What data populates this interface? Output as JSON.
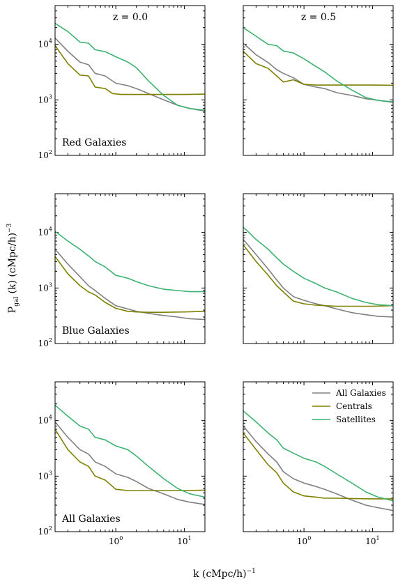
{
  "xlabel_main": "k (cMpc/h)",
  "xlabel_sup": "−1",
  "ylabel_main": "P",
  "ylabel_sub": "gal",
  "ylabel_rest": " (k) (cMpc/h)",
  "ylabel_sup": "−3",
  "x_tick_labels": [
    {
      "base": "10",
      "exp": "0",
      "value": 1
    },
    {
      "base": "10",
      "exp": "1",
      "value": 10
    }
  ],
  "y_tick_labels": [
    {
      "base": "10",
      "exp": "2",
      "value": 100
    },
    {
      "base": "10",
      "exp": "3",
      "value": 1000
    },
    {
      "base": "10",
      "exp": "4",
      "value": 10000
    }
  ],
  "colors": {
    "All Galaxies": "#808080",
    "Centrals": "#808000",
    "Satellites": "#3cb371"
  },
  "legend": [
    {
      "name": "All Galaxies",
      "color": "#808080"
    },
    {
      "name": "Centrals",
      "color": "#808000"
    },
    {
      "name": "Satellites",
      "color": "#3cb371"
    }
  ],
  "legend_placement": "top-right of bottom-right panel",
  "chart_data": [
    {
      "type": "line",
      "row": 0,
      "col": 0,
      "title": "z = 0.0",
      "label": "Red Galaxies",
      "xscale": "log",
      "yscale": "log",
      "xlim": [
        0.13,
        20
      ],
      "ylim": [
        100,
        50000
      ],
      "series": [
        {
          "name": "All Galaxies",
          "x": [
            0.13,
            0.2,
            0.3,
            0.4,
            0.5,
            0.7,
            1,
            1.5,
            2,
            3,
            5,
            8,
            12,
            20
          ],
          "y": [
            13000,
            7500,
            4800,
            4300,
            3000,
            2700,
            2000,
            1800,
            1600,
            1300,
            1000,
            800,
            700,
            630
          ]
        },
        {
          "name": "Centrals",
          "x": [
            0.13,
            0.2,
            0.3,
            0.4,
            0.5,
            0.7,
            0.9,
            1.2,
            2,
            3,
            5,
            10,
            20
          ],
          "y": [
            9500,
            4500,
            2800,
            2700,
            1700,
            1600,
            1300,
            1250,
            1250,
            1250,
            1250,
            1250,
            1270
          ]
        },
        {
          "name": "Satellites",
          "x": [
            0.13,
            0.2,
            0.3,
            0.4,
            0.5,
            0.7,
            1,
            1.5,
            2,
            3,
            5,
            8,
            12,
            20
          ],
          "y": [
            24000,
            17000,
            11000,
            10500,
            8000,
            7400,
            6000,
            4800,
            3800,
            2200,
            1200,
            800,
            700,
            650
          ]
        }
      ]
    },
    {
      "type": "line",
      "row": 0,
      "col": 1,
      "title": "z = 0.5",
      "label": "",
      "xscale": "log",
      "yscale": "log",
      "xlim": [
        0.13,
        20
      ],
      "ylim": [
        100,
        50000
      ],
      "series": [
        {
          "name": "All Galaxies",
          "x": [
            0.13,
            0.2,
            0.3,
            0.4,
            0.5,
            0.7,
            1,
            1.5,
            2,
            3,
            5,
            8,
            12,
            20
          ],
          "y": [
            10500,
            6500,
            4700,
            3500,
            3000,
            2500,
            1900,
            1700,
            1600,
            1350,
            1200,
            1050,
            980,
            900
          ]
        },
        {
          "name": "Centrals",
          "x": [
            0.13,
            0.2,
            0.3,
            0.4,
            0.5,
            0.7,
            1,
            1.5,
            2,
            3,
            5,
            10,
            20
          ],
          "y": [
            7500,
            4500,
            3700,
            2700,
            2100,
            2300,
            1900,
            1850,
            1850,
            1850,
            1850,
            1850,
            1830
          ]
        },
        {
          "name": "Satellites",
          "x": [
            0.13,
            0.2,
            0.3,
            0.4,
            0.5,
            0.7,
            1,
            1.5,
            2,
            3,
            5,
            8,
            12,
            20
          ],
          "y": [
            20000,
            14000,
            10000,
            9500,
            7600,
            7000,
            5500,
            4000,
            3200,
            2200,
            1500,
            1100,
            980,
            920
          ]
        }
      ]
    },
    {
      "type": "line",
      "row": 1,
      "col": 0,
      "title": "",
      "label": "Blue Galaxies",
      "xscale": "log",
      "yscale": "log",
      "xlim": [
        0.13,
        20
      ],
      "ylim": [
        100,
        50000
      ],
      "series": [
        {
          "name": "All Galaxies",
          "x": [
            0.13,
            0.2,
            0.3,
            0.4,
            0.5,
            0.7,
            1,
            1.5,
            2,
            3,
            5,
            8,
            12,
            20
          ],
          "y": [
            5000,
            2700,
            1600,
            1100,
            900,
            650,
            480,
            420,
            380,
            350,
            320,
            300,
            280,
            270
          ]
        },
        {
          "name": "Centrals",
          "x": [
            0.13,
            0.2,
            0.3,
            0.4,
            0.5,
            0.7,
            1,
            1.5,
            2,
            3,
            5,
            10,
            20
          ],
          "y": [
            3700,
            1800,
            1100,
            850,
            750,
            550,
            430,
            380,
            370,
            365,
            365,
            370,
            380
          ]
        },
        {
          "name": "Satellites",
          "x": [
            0.13,
            0.2,
            0.3,
            0.4,
            0.5,
            0.7,
            1,
            1.5,
            2,
            3,
            5,
            8,
            12,
            20
          ],
          "y": [
            10500,
            7000,
            5000,
            3800,
            3000,
            2400,
            1700,
            1500,
            1300,
            1100,
            950,
            900,
            860,
            860
          ]
        }
      ]
    },
    {
      "type": "line",
      "row": 1,
      "col": 1,
      "title": "",
      "label": "",
      "xscale": "log",
      "yscale": "log",
      "xlim": [
        0.13,
        20
      ],
      "ylim": [
        100,
        50000
      ],
      "series": [
        {
          "name": "All Galaxies",
          "x": [
            0.13,
            0.2,
            0.3,
            0.4,
            0.5,
            0.7,
            1,
            1.5,
            2,
            3,
            5,
            8,
            12,
            20
          ],
          "y": [
            7500,
            4000,
            2200,
            1400,
            1000,
            700,
            600,
            520,
            480,
            420,
            360,
            330,
            310,
            300
          ]
        },
        {
          "name": "Centrals",
          "x": [
            0.13,
            0.2,
            0.3,
            0.4,
            0.5,
            0.7,
            1,
            1.5,
            2,
            3,
            5,
            10,
            20
          ],
          "y": [
            6000,
            3000,
            1700,
            1100,
            850,
            580,
            520,
            490,
            480,
            470,
            470,
            470,
            480
          ]
        },
        {
          "name": "Satellites",
          "x": [
            0.13,
            0.2,
            0.3,
            0.4,
            0.5,
            0.7,
            1,
            1.5,
            2,
            3,
            5,
            8,
            12,
            20
          ],
          "y": [
            12500,
            7500,
            5000,
            3500,
            2700,
            2000,
            1500,
            1200,
            1000,
            850,
            650,
            550,
            500,
            480
          ]
        }
      ]
    },
    {
      "type": "line",
      "row": 2,
      "col": 0,
      "title": "",
      "label": "All Galaxies",
      "xscale": "log",
      "yscale": "log",
      "xlim": [
        0.13,
        20
      ],
      "ylim": [
        100,
        50000
      ],
      "series": [
        {
          "name": "All Galaxies",
          "x": [
            0.13,
            0.2,
            0.3,
            0.4,
            0.5,
            0.7,
            1,
            1.5,
            2,
            3,
            5,
            8,
            12,
            20
          ],
          "y": [
            9500,
            5000,
            3000,
            2500,
            1800,
            1500,
            1100,
            950,
            800,
            600,
            480,
            380,
            340,
            310
          ]
        },
        {
          "name": "Centrals",
          "x": [
            0.13,
            0.2,
            0.3,
            0.4,
            0.5,
            0.7,
            1,
            1.5,
            2,
            3,
            5,
            10,
            20
          ],
          "y": [
            7000,
            3000,
            1800,
            1500,
            1000,
            850,
            580,
            550,
            550,
            550,
            550,
            550,
            560
          ]
        },
        {
          "name": "Satellites",
          "x": [
            0.13,
            0.2,
            0.3,
            0.4,
            0.5,
            0.7,
            1,
            1.5,
            2,
            3,
            5,
            8,
            12,
            20
          ],
          "y": [
            19000,
            12000,
            8000,
            7000,
            5000,
            4500,
            3500,
            3000,
            2300,
            1500,
            900,
            600,
            480,
            420
          ]
        }
      ]
    },
    {
      "type": "line",
      "row": 2,
      "col": 1,
      "title": "",
      "label": "",
      "xscale": "log",
      "yscale": "log",
      "xlim": [
        0.13,
        20
      ],
      "ylim": [
        100,
        50000
      ],
      "series": [
        {
          "name": "All Galaxies",
          "x": [
            0.13,
            0.2,
            0.3,
            0.4,
            0.5,
            0.7,
            1,
            1.5,
            2,
            3,
            5,
            8,
            12,
            20
          ],
          "y": [
            8000,
            4200,
            2500,
            1800,
            1200,
            900,
            750,
            650,
            580,
            480,
            370,
            300,
            270,
            240
          ]
        },
        {
          "name": "Centrals",
          "x": [
            0.13,
            0.2,
            0.3,
            0.4,
            0.5,
            0.7,
            1,
            1.5,
            2,
            3,
            5,
            10,
            20
          ],
          "y": [
            6000,
            3000,
            1600,
            1150,
            750,
            520,
            440,
            420,
            400,
            400,
            395,
            390,
            390
          ]
        },
        {
          "name": "Satellites",
          "x": [
            0.13,
            0.2,
            0.3,
            0.4,
            0.5,
            0.7,
            1,
            1.5,
            2,
            3,
            5,
            8,
            12,
            20
          ],
          "y": [
            15000,
            9500,
            6000,
            4500,
            3200,
            2600,
            2100,
            1800,
            1500,
            1100,
            750,
            520,
            420,
            360
          ]
        }
      ]
    }
  ]
}
